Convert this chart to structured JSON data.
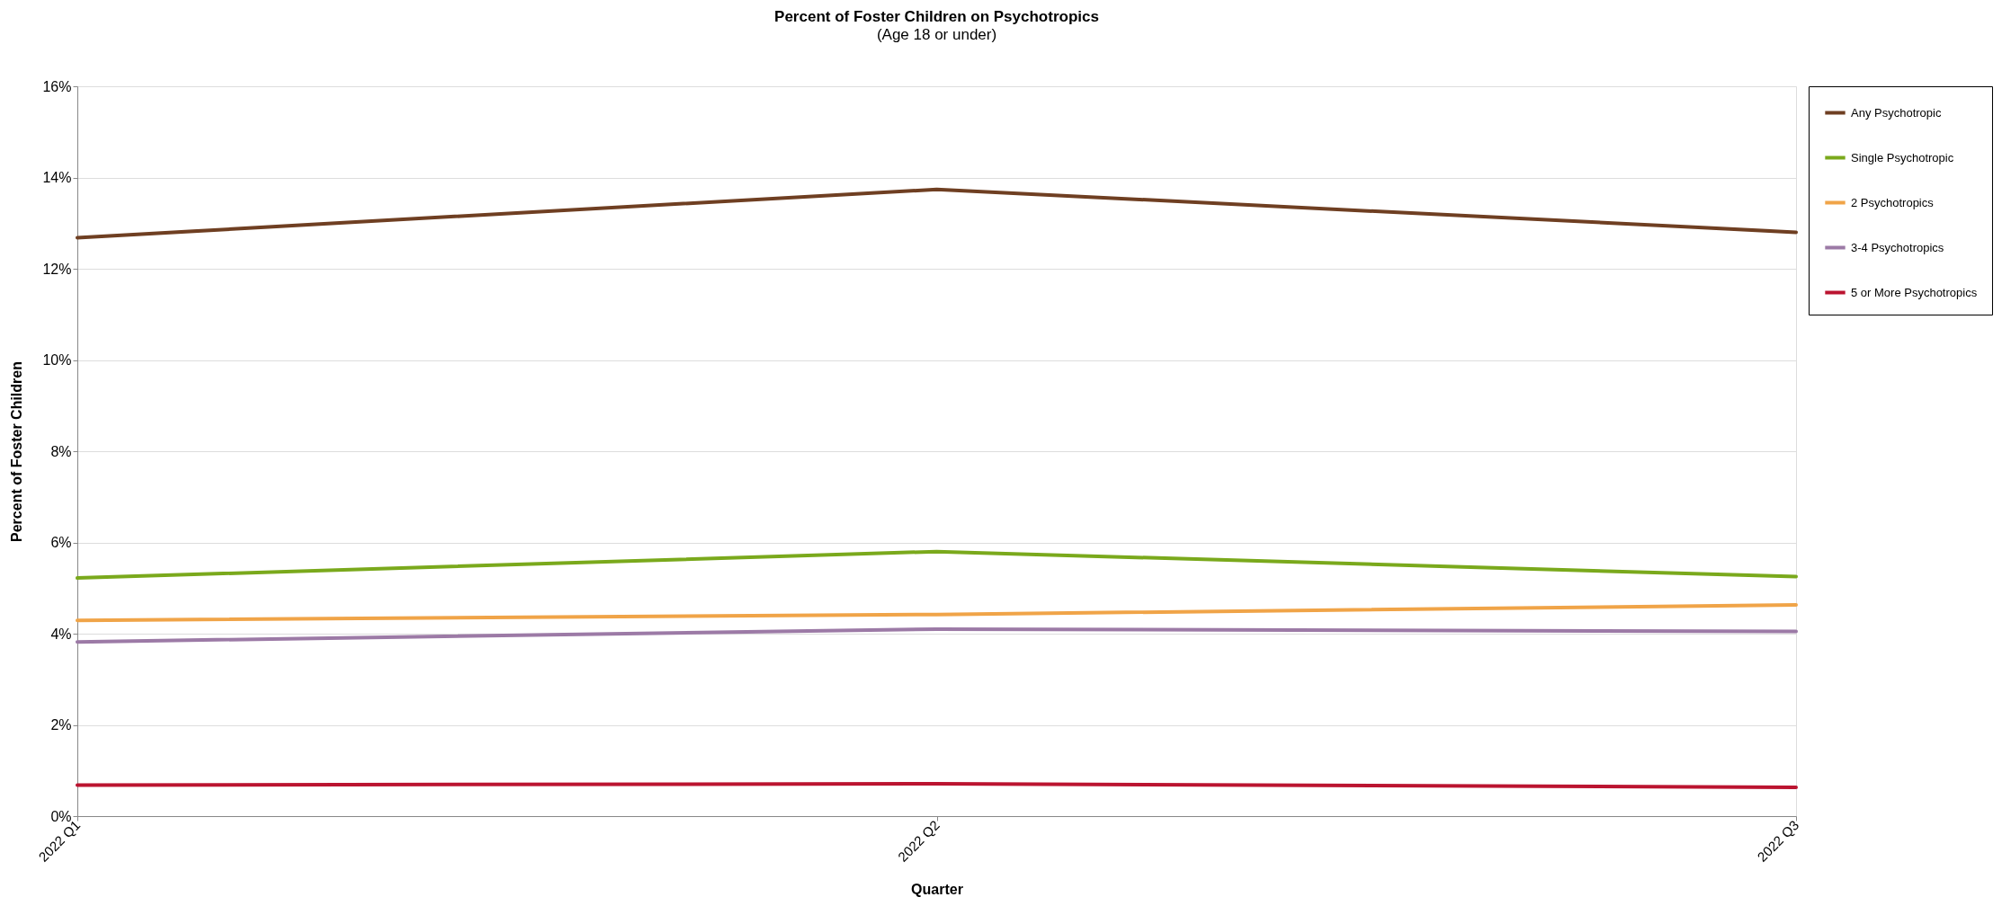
{
  "chart_data": {
    "type": "line",
    "title": "Percent of Foster Children on Psychotropics",
    "subtitle": "(Age 18 or under)",
    "xlabel": "Quarter",
    "ylabel": "Percent of Foster Children",
    "categories": [
      "2022 Q1",
      "2022 Q2",
      "2022 Q3"
    ],
    "series": [
      {
        "name": "Any Psychotropic",
        "color": "#6f3f22",
        "values": [
          12.68,
          13.74,
          12.8
        ]
      },
      {
        "name": "Single Psychotropic",
        "color": "#7aa91c",
        "values": [
          5.22,
          5.8,
          5.25
        ]
      },
      {
        "name": "2 Psychotropics",
        "color": "#f0a448",
        "values": [
          4.29,
          4.42,
          4.63
        ]
      },
      {
        "name": "3-4 Psychotropics",
        "color": "#9c7aa6",
        "values": [
          3.82,
          4.1,
          4.05
        ]
      },
      {
        "name": "5 or More Psychotropics",
        "color": "#bb1430",
        "values": [
          0.68,
          0.71,
          0.63
        ]
      }
    ],
    "ylim": [
      0,
      16
    ],
    "yticks": [
      {
        "value": 0,
        "label": "0%"
      },
      {
        "value": 2,
        "label": "2%"
      },
      {
        "value": 4,
        "label": "4%"
      },
      {
        "value": 6,
        "label": "6%"
      },
      {
        "value": 8,
        "label": "8%"
      },
      {
        "value": 10,
        "label": "10%"
      },
      {
        "value": 12,
        "label": "12%"
      },
      {
        "value": 14,
        "label": "14%"
      },
      {
        "value": 16,
        "label": "16%"
      }
    ],
    "grid": "y",
    "legend": "right",
    "marker": "none",
    "line_style": "solid"
  }
}
